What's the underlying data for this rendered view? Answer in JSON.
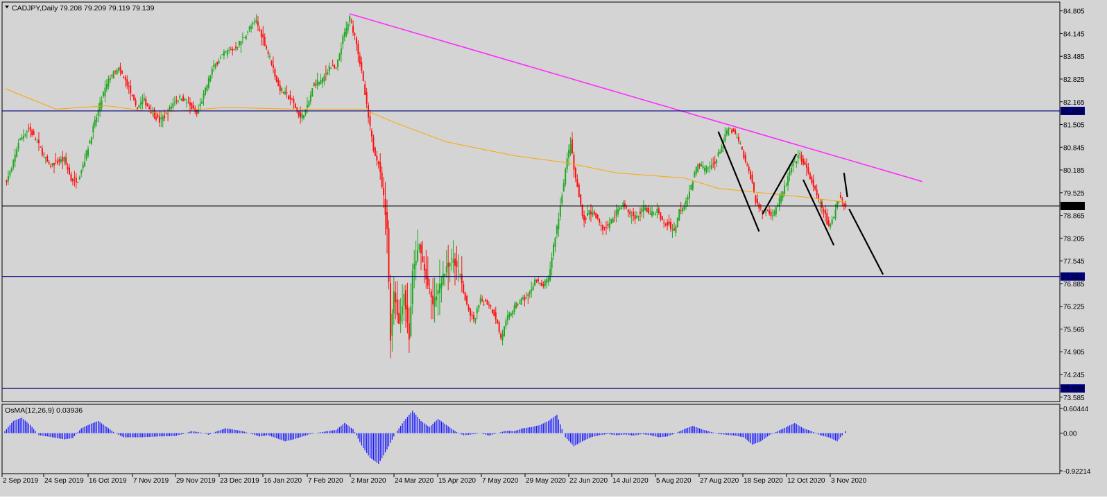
{
  "window": {
    "symbol": "CADJPY,Daily",
    "ohlc": "79.208 79.209 79.119 79.139",
    "indicator_label": "OsMA(12,26,9) 0.03936"
  },
  "colors": {
    "background": "#d4d4d4",
    "bull_candle": "#1fa81f",
    "bear_candle": "#ff1010",
    "moving_average": "#ffa500",
    "trendline": "#ff2bff",
    "level_line": "#000080",
    "projection_line": "#000000",
    "osma_bars": "#1a1aff",
    "price_badge": "#000080"
  },
  "chart_data": [
    {
      "type": "candlestick",
      "title": "CADJPY,Daily",
      "x_labels": [
        "2 Sep 2019",
        "24 Sep 2019",
        "16 Oct 2019",
        "7 Nov 2019",
        "29 Nov 2019",
        "23 Dec 2019",
        "16 Jan 2020",
        "7 Feb 2020",
        "2 Mar 2020",
        "24 Mar 2020",
        "15 Apr 2020",
        "7 May 2020",
        "29 May 2020",
        "22 Jun 2020",
        "14 Jul 2020",
        "5 Aug 2020",
        "27 Aug 2020",
        "18 Sep 2020",
        "12 Oct 2020",
        "3 Nov 2020"
      ],
      "y_ticks": [
        "84.805",
        "84.145",
        "83.485",
        "82.825",
        "82.165",
        "81.505",
        "80.845",
        "80.185",
        "79.525",
        "78.865",
        "78.205",
        "77.545",
        "76.885",
        "76.225",
        "75.565",
        "74.905",
        "74.245",
        "73.585"
      ],
      "ylim": [
        73.46,
        85.06
      ],
      "close_path": [
        [
          0,
          79.8
        ],
        [
          4,
          80.2
        ],
        [
          8,
          81.0
        ],
        [
          14,
          81.4
        ],
        [
          20,
          80.9
        ],
        [
          26,
          80.3
        ],
        [
          30,
          80.4
        ],
        [
          35,
          80.5
        ],
        [
          39,
          79.9
        ],
        [
          43,
          79.9
        ],
        [
          47,
          80.5
        ],
        [
          52,
          81.4
        ],
        [
          58,
          82.4
        ],
        [
          62,
          82.9
        ],
        [
          67,
          83.1
        ],
        [
          72,
          82.7
        ],
        [
          77,
          82.0
        ],
        [
          82,
          82.2
        ],
        [
          86,
          81.9
        ],
        [
          91,
          81.6
        ],
        [
          95,
          81.8
        ],
        [
          100,
          82.2
        ],
        [
          104,
          82.3
        ],
        [
          108,
          82.1
        ],
        [
          113,
          81.8
        ],
        [
          118,
          82.5
        ],
        [
          122,
          83.1
        ],
        [
          126,
          83.4
        ],
        [
          130,
          83.6
        ],
        [
          135,
          83.7
        ],
        [
          140,
          84.0
        ],
        [
          144,
          84.3
        ],
        [
          148,
          84.5
        ],
        [
          152,
          84.0
        ],
        [
          157,
          83.3
        ],
        [
          161,
          82.6
        ],
        [
          165,
          82.4
        ],
        [
          169,
          82.2
        ],
        [
          174,
          81.7
        ],
        [
          178,
          82.0
        ],
        [
          182,
          82.7
        ],
        [
          187,
          82.8
        ],
        [
          191,
          83.2
        ],
        [
          195,
          83.1
        ],
        [
          199,
          84.0
        ],
        [
          203,
          84.6
        ],
        [
          207,
          83.9
        ],
        [
          211,
          82.7
        ],
        [
          214,
          81.7
        ],
        [
          217,
          80.8
        ],
        [
          220,
          80.4
        ],
        [
          223,
          79.4
        ],
        [
          225,
          78.5
        ],
        [
          227,
          75.3
        ],
        [
          229,
          76.7
        ],
        [
          232,
          75.7
        ],
        [
          235,
          76.6
        ],
        [
          238,
          75.3
        ],
        [
          240,
          77.2
        ],
        [
          244,
          78.0
        ],
        [
          248,
          77.0
        ],
        [
          252,
          76.3
        ],
        [
          256,
          76.8
        ],
        [
          260,
          77.4
        ],
        [
          264,
          77.6
        ],
        [
          268,
          77.1
        ],
        [
          272,
          76.2
        ],
        [
          276,
          75.8
        ],
        [
          280,
          76.4
        ],
        [
          285,
          76.3
        ],
        [
          289,
          75.9
        ],
        [
          292,
          75.3
        ],
        [
          296,
          75.9
        ],
        [
          300,
          76.2
        ],
        [
          304,
          76.4
        ],
        [
          308,
          76.5
        ],
        [
          312,
          77.0
        ],
        [
          316,
          76.8
        ],
        [
          320,
          77.0
        ],
        [
          323,
          78.0
        ],
        [
          326,
          78.8
        ],
        [
          328,
          79.5
        ],
        [
          330,
          80.2
        ],
        [
          333,
          81.0
        ],
        [
          335,
          80.2
        ],
        [
          338,
          79.4
        ],
        [
          341,
          78.7
        ],
        [
          344,
          79.0
        ],
        [
          348,
          78.8
        ],
        [
          352,
          78.5
        ],
        [
          356,
          78.6
        ],
        [
          360,
          79.0
        ],
        [
          364,
          79.2
        ],
        [
          368,
          78.9
        ],
        [
          372,
          78.8
        ],
        [
          376,
          79.1
        ],
        [
          380,
          78.9
        ],
        [
          384,
          79.0
        ],
        [
          388,
          78.6
        ],
        [
          391,
          78.6
        ],
        [
          394,
          78.4
        ],
        [
          397,
          79.0
        ],
        [
          400,
          79.2
        ],
        [
          404,
          79.7
        ],
        [
          408,
          80.4
        ],
        [
          412,
          80.2
        ],
        [
          416,
          80.3
        ],
        [
          419,
          80.5
        ],
        [
          422,
          80.9
        ],
        [
          426,
          81.4
        ],
        [
          430,
          81.2
        ],
        [
          433,
          80.9
        ],
        [
          436,
          80.4
        ],
        [
          439,
          80.0
        ],
        [
          442,
          79.3
        ],
        [
          445,
          79.0
        ],
        [
          448,
          79.0
        ],
        [
          452,
          78.9
        ],
        [
          456,
          79.3
        ],
        [
          460,
          79.8
        ],
        [
          464,
          80.4
        ],
        [
          468,
          80.6
        ],
        [
          472,
          80.2
        ],
        [
          476,
          79.7
        ],
        [
          479,
          79.3
        ],
        [
          482,
          79.0
        ],
        [
          485,
          78.5
        ],
        [
          488,
          78.8
        ],
        [
          490,
          79.3
        ],
        [
          492,
          79.4
        ],
        [
          495,
          79.1
        ]
      ],
      "series": [
        {
          "name": "",
          "role": "moving average",
          "points": [
            [
              0,
              82.55
            ],
            [
              30,
              81.95
            ],
            [
              60,
              82.05
            ],
            [
              90,
              81.85
            ],
            [
              130,
              82.0
            ],
            [
              170,
              81.95
            ],
            [
              211,
              81.95
            ],
            [
              230,
              81.55
            ],
            [
              260,
              81.0
            ],
            [
              300,
              80.6
            ],
            [
              330,
              80.4
            ],
            [
              360,
              80.1
            ],
            [
              400,
              79.95
            ],
            [
              420,
              79.65
            ],
            [
              440,
              79.55
            ],
            [
              470,
              79.4
            ],
            [
              495,
              79.25
            ]
          ]
        },
        {
          "name": "",
          "role": "trendline",
          "points": [
            [
              203,
              84.72
            ],
            [
              540,
              79.85
            ]
          ]
        },
        {
          "name": "",
          "role": "projection",
          "points": [
            [
              420,
              81.3
            ],
            [
              444,
              78.4
            ],
            [
              446,
              78.9
            ],
            [
              466,
              80.65
            ],
            [
              470,
              79.9
            ],
            [
              488,
              78.0
            ],
            [
              494,
              80.1
            ],
            [
              496,
              79.4
            ],
            [
              497,
              79.05
            ],
            [
              517,
              77.15
            ]
          ]
        }
      ],
      "levels": [
        {
          "value": 81.899,
          "label": "81.899"
        },
        {
          "value": 77.091,
          "label": "77.091"
        },
        {
          "value": 73.839,
          "label": "73.839"
        }
      ],
      "current_price": {
        "value": 79.139,
        "label": "79.139"
      }
    },
    {
      "type": "bar",
      "title": "OsMA(12,26,9) 0.03936",
      "y_ticks": [
        "0.60444",
        "0.00",
        "-0.92214"
      ],
      "ylim": [
        -0.92214,
        0.60444
      ],
      "values_path": [
        [
          0,
          0.05
        ],
        [
          5,
          0.3
        ],
        [
          10,
          0.38
        ],
        [
          15,
          0.2
        ],
        [
          20,
          -0.05
        ],
        [
          25,
          -0.08
        ],
        [
          35,
          -0.15
        ],
        [
          40,
          -0.12
        ],
        [
          45,
          0.12
        ],
        [
          50,
          0.22
        ],
        [
          55,
          0.3
        ],
        [
          60,
          0.15
        ],
        [
          65,
          0.0
        ],
        [
          70,
          -0.1
        ],
        [
          80,
          -0.1
        ],
        [
          90,
          -0.08
        ],
        [
          100,
          -0.07
        ],
        [
          105,
          -0.02
        ],
        [
          110,
          0.05
        ],
        [
          115,
          0.02
        ],
        [
          120,
          -0.04
        ],
        [
          125,
          0.05
        ],
        [
          130,
          0.12
        ],
        [
          140,
          0.05
        ],
        [
          150,
          -0.08
        ],
        [
          155,
          -0.05
        ],
        [
          165,
          -0.2
        ],
        [
          170,
          -0.15
        ],
        [
          180,
          -0.02
        ],
        [
          190,
          0.05
        ],
        [
          195,
          0.08
        ],
        [
          200,
          0.25
        ],
        [
          205,
          0.1
        ],
        [
          207,
          -0.05
        ],
        [
          210,
          -0.3
        ],
        [
          215,
          -0.6
        ],
        [
          220,
          -0.75
        ],
        [
          225,
          -0.4
        ],
        [
          230,
          0.0
        ],
        [
          235,
          0.3
        ],
        [
          240,
          0.55
        ],
        [
          245,
          0.3
        ],
        [
          250,
          0.15
        ],
        [
          255,
          0.35
        ],
        [
          260,
          0.2
        ],
        [
          265,
          0.05
        ],
        [
          270,
          -0.05
        ],
        [
          275,
          -0.03
        ],
        [
          280,
          0.0
        ],
        [
          285,
          -0.06
        ],
        [
          290,
          0.0
        ],
        [
          295,
          0.06
        ],
        [
          300,
          0.05
        ],
        [
          305,
          0.12
        ],
        [
          310,
          0.15
        ],
        [
          315,
          0.2
        ],
        [
          320,
          0.3
        ],
        [
          325,
          0.45
        ],
        [
          328,
          0.1
        ],
        [
          330,
          -0.1
        ],
        [
          335,
          -0.32
        ],
        [
          340,
          -0.2
        ],
        [
          345,
          -0.1
        ],
        [
          350,
          -0.05
        ],
        [
          355,
          -0.02
        ],
        [
          360,
          -0.05
        ],
        [
          365,
          -0.03
        ],
        [
          370,
          -0.06
        ],
        [
          375,
          -0.02
        ],
        [
          380,
          -0.05
        ],
        [
          385,
          -0.1
        ],
        [
          390,
          -0.08
        ],
        [
          395,
          0.0
        ],
        [
          400,
          0.1
        ],
        [
          405,
          0.18
        ],
        [
          410,
          0.1
        ],
        [
          415,
          0.04
        ],
        [
          420,
          -0.02
        ],
        [
          425,
          -0.04
        ],
        [
          430,
          -0.06
        ],
        [
          435,
          -0.1
        ],
        [
          440,
          -0.28
        ],
        [
          445,
          -0.2
        ],
        [
          450,
          -0.05
        ],
        [
          455,
          0.05
        ],
        [
          460,
          0.15
        ],
        [
          465,
          0.25
        ],
        [
          470,
          0.12
        ],
        [
          475,
          0.05
        ],
        [
          480,
          -0.05
        ],
        [
          485,
          -0.1
        ],
        [
          490,
          -0.2
        ],
        [
          495,
          0.05
        ]
      ]
    }
  ]
}
